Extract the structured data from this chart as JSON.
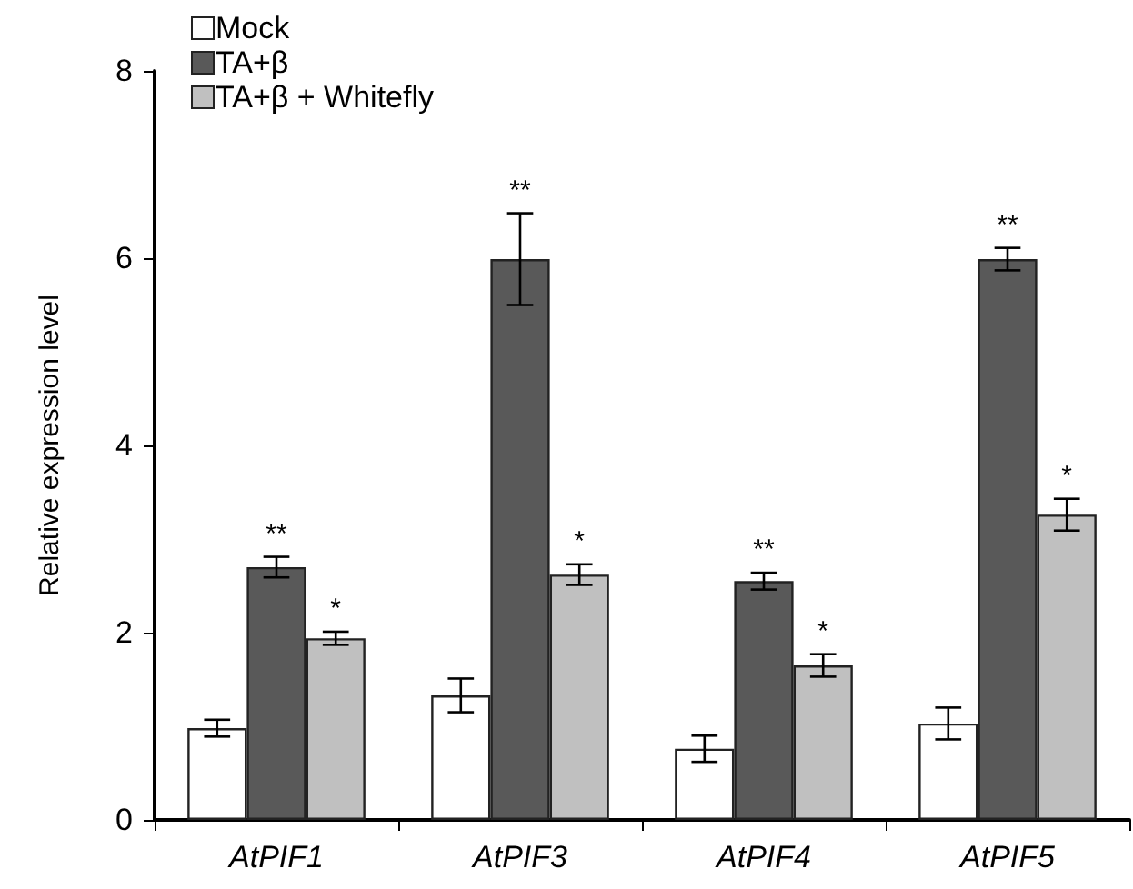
{
  "chart_data": {
    "type": "bar",
    "ylabel": "Relative expression level",
    "categories": [
      "AtPIF1",
      "AtPIF3",
      "AtPIF4",
      "AtPIF5"
    ],
    "series": [
      {
        "name": "Mock",
        "color": "#ffffff",
        "values": [
          0.98,
          1.33,
          0.76,
          1.03
        ],
        "errors": [
          0.09,
          0.18,
          0.14,
          0.17
        ]
      },
      {
        "name": "TA+β",
        "color": "#595959",
        "values": [
          2.7,
          5.99,
          2.55,
          5.99
        ],
        "errors": [
          0.11,
          0.49,
          0.09,
          0.12
        ],
        "value_labels": [
          "**",
          "**",
          "**",
          "**"
        ]
      },
      {
        "name": "TA+β + Whitefly",
        "color": "#c0c0c0",
        "values": [
          1.94,
          2.62,
          1.65,
          3.26
        ],
        "errors": [
          0.07,
          0.11,
          0.12,
          0.17
        ],
        "value_labels": [
          "*",
          "*",
          "*",
          "*"
        ]
      }
    ],
    "ylim": [
      0,
      8
    ],
    "yticks": [
      0,
      2,
      4,
      6,
      8
    ],
    "grid": false,
    "legend": "top left"
  }
}
